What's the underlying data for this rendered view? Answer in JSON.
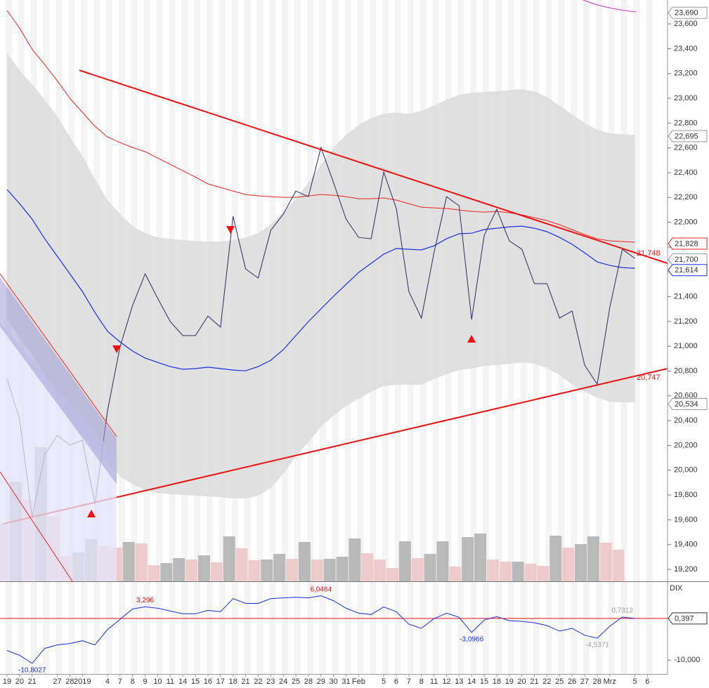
{
  "chart_data": [
    {
      "type": "line",
      "ylim": [
        19104,
        23793
      ],
      "yticks": [
        {
          "value": 19200,
          "label": "19,200"
        },
        {
          "value": 19400,
          "label": "19,400"
        },
        {
          "value": 19600,
          "label": "19,600"
        },
        {
          "value": 19800,
          "label": "19,800"
        },
        {
          "value": 20000,
          "label": "20,000"
        },
        {
          "value": 20200,
          "label": "20,200"
        },
        {
          "value": 20400,
          "label": "20,400"
        },
        {
          "value": 20600,
          "label": "20,600"
        },
        {
          "value": 20800,
          "label": "20,800"
        },
        {
          "value": 21000,
          "label": "21,000"
        },
        {
          "value": 21200,
          "label": "21,200"
        },
        {
          "value": 21400,
          "label": "21,400"
        },
        {
          "value": 21600,
          "label": "21,600"
        },
        {
          "value": 21800,
          "label": "21,800"
        },
        {
          "value": 22000,
          "label": "22,000"
        },
        {
          "value": 22200,
          "label": "22,200"
        },
        {
          "value": 22400,
          "label": "22,400"
        },
        {
          "value": 22600,
          "label": "22,600"
        },
        {
          "value": 22800,
          "label": "22,800"
        },
        {
          "value": 23000,
          "label": "23,000"
        },
        {
          "value": 23200,
          "label": "23,200"
        },
        {
          "value": 23400,
          "label": "23,400"
        },
        {
          "value": 23600,
          "label": "23,600"
        }
      ],
      "band": {
        "color": "#dcdcdc",
        "upper": [
          23368,
          23226,
          23113,
          22988,
          22858,
          22688,
          22535,
          22348,
          22179,
          22065,
          21969,
          21912,
          21878,
          21867,
          21856,
          21850,
          21844,
          21844,
          21856,
          21878,
          21912,
          21980,
          22082,
          22190,
          22320,
          22462,
          22603,
          22705,
          22785,
          22841,
          22875,
          22886,
          22875,
          22898,
          22943,
          22988,
          23028,
          23045,
          23051,
          23056,
          23068,
          23073,
          23056,
          23011,
          22943,
          22869,
          22802,
          22745,
          22717,
          22711,
          22705,
          null
        ],
        "lower": [
          21216,
          21074,
          20933,
          20763,
          20593,
          20423,
          20281,
          20168,
          20055,
          19953,
          19885,
          19840,
          19817,
          19806,
          19800,
          19794,
          19789,
          19783,
          19772,
          19772,
          19794,
          19857,
          19970,
          20112,
          20225,
          20349,
          20440,
          20519,
          20576,
          20633,
          20678,
          20689,
          20689,
          20689,
          20735,
          20774,
          20808,
          20820,
          20842,
          20848,
          20859,
          20870,
          20859,
          20825,
          20768,
          20689,
          20633,
          20587,
          20553,
          20548,
          20548,
          null
        ]
      },
      "volume": {
        "ylim": [
          0,
          200
        ],
        "values": [
          83,
          142,
          116,
          191,
          93,
          36,
          41,
          60,
          50,
          48,
          56,
          54,
          23,
          26,
          33,
          31,
          37,
          27,
          64,
          47,
          30,
          31,
          39,
          32,
          56,
          31,
          32,
          35,
          61,
          40,
          31,
          19,
          57,
          33,
          39,
          57,
          21,
          63,
          68,
          31,
          28,
          28,
          25,
          22,
          65,
          48,
          53,
          64,
          55,
          45,
          null,
          null
        ],
        "colors": [
          "#ecc6c6",
          "#b3b3b3",
          "#ecc6c6",
          "#b3b3b3",
          "#ecc6c6",
          "#ecc6c6",
          "#b3b3b3",
          "#b3b3b3",
          "#ecc6c6",
          "#ecc6c6",
          "#b3b3b3",
          "#ecc6c6",
          "#ecc6c6",
          "#b3b3b3",
          "#b3b3b3",
          "#ecc6c6",
          "#b3b3b3",
          "#ecc6c6",
          "#b3b3b3",
          "#ecc6c6",
          "#ecc6c6",
          "#b3b3b3",
          "#b3b3b3",
          "#ecc6c6",
          "#b3b3b3",
          "#ecc6c6",
          "#b3b3b3",
          "#b3b3b3",
          "#b3b3b3",
          "#ecc6c6",
          "#ecc6c6",
          "#ecc6c6",
          "#b3b3b3",
          "#ecc6c6",
          "#b3b3b3",
          "#b3b3b3",
          "#ecc6c6",
          "#b3b3b3",
          "#b3b3b3",
          "#ecc6c6",
          "#ecc6c6",
          "#b3b3b3",
          "#ecc6c6",
          "#ecc6c6",
          "#b3b3b3",
          "#ecc6c6",
          "#b3b3b3",
          "#b3b3b3",
          "#ecc6c6",
          "#ecc6c6",
          null,
          null
        ]
      },
      "series": [
        {
          "color": "#ee2222",
          "width": 1,
          "values": [
            23708,
            23566,
            23396,
            23272,
            23141,
            23000,
            22887,
            22774,
            22688,
            22643,
            22603,
            22569,
            22518,
            22467,
            22416,
            22365,
            22309,
            22281,
            22252,
            22224,
            22213,
            22207,
            22201,
            22201,
            22213,
            22224,
            22218,
            22207,
            22190,
            22190,
            22196,
            22179,
            22150,
            22122,
            22116,
            22111,
            22099,
            22088,
            22082,
            22088,
            22077,
            22060,
            22037,
            22014,
            21980,
            21941,
            21901,
            21867,
            21850,
            21845,
            21839,
            null
          ]
        },
        {
          "color": "#1a2ee0",
          "width": 1.2,
          "values": [
            22264,
            22150,
            22026,
            21867,
            21726,
            21584,
            21442,
            21272,
            21120,
            21035,
            20961,
            20904,
            20870,
            20836,
            20814,
            20820,
            20831,
            20820,
            20808,
            20802,
            20836,
            20887,
            20972,
            21086,
            21199,
            21301,
            21403,
            21499,
            21595,
            21669,
            21743,
            21788,
            21782,
            21777,
            21810,
            21867,
            21907,
            21912,
            21941,
            21952,
            21963,
            21969,
            21952,
            21924,
            21878,
            21822,
            21754,
            21680,
            21652,
            21635,
            21629,
            null
          ]
        },
        {
          "color": "#2a2a5e",
          "width": 1,
          "values": [
            20735,
            20412,
            19619,
            20123,
            20282,
            20202,
            20242,
            19727,
            20480,
            20995,
            21329,
            21584,
            21386,
            21199,
            21086,
            21086,
            21244,
            21154,
            22048,
            21624,
            21550,
            21935,
            22065,
            22252,
            22207,
            22603,
            22320,
            22026,
            21878,
            21867,
            22405,
            22111,
            21442,
            21227,
            21754,
            22207,
            22133,
            21216,
            21895,
            22105,
            21850,
            21782,
            21505,
            21505,
            21227,
            21284,
            20848,
            20695,
            21312,
            21782,
            21709,
            null
          ]
        }
      ],
      "trendlines": [
        {
          "color": "#ee1111",
          "x": [
            5.76,
            52.6
          ],
          "y": [
            23226,
            21669
          ],
          "end_label": {
            "value": 21748,
            "label": "21,748"
          }
        },
        {
          "color": "#ee1111",
          "x": [
            -0.28,
            52.6
          ],
          "y": [
            19568,
            20820
          ],
          "end_label": {
            "value": 20747,
            "label": "20,747"
          }
        }
      ],
      "price_tags": [
        {
          "value": 23690,
          "label": "23,690",
          "color": "#999999"
        },
        {
          "value": 22695,
          "label": "22,695",
          "color": "#999999"
        },
        {
          "value": 21828,
          "label": "21,828",
          "color": "#ee2222"
        },
        {
          "value": 21700,
          "label": "21,700",
          "color": "#999999"
        },
        {
          "value": 21614,
          "label": "21,614",
          "color": "#1a2ee0"
        },
        {
          "value": 20534,
          "label": "20,534",
          "color": "#999999"
        }
      ]
    },
    {
      "type": "line",
      "title": "DIX",
      "categories": [
        "19",
        "20",
        "21",
        null,
        "27",
        "28",
        "2019",
        null,
        "4",
        "7",
        "8",
        "9",
        "10",
        "11",
        "14",
        "15",
        "16",
        "17",
        "18",
        "21",
        "22",
        "23",
        "24",
        "25",
        "28",
        "29",
        "30",
        "31",
        "Feb",
        null,
        "5",
        "6",
        "7",
        "8",
        "11",
        "12",
        "13",
        "14",
        "15",
        "18",
        "19",
        "20",
        "21",
        "22",
        "25",
        "26",
        "27",
        "28",
        "Mrz",
        null,
        "5",
        "6"
      ],
      "ylim": [
        -13.45,
        9.31
      ],
      "yticks": [
        {
          "value": -10,
          "label": "-10,000"
        }
      ],
      "hline": {
        "value": 0.397,
        "label": "0,397",
        "color": "#dd1111"
      },
      "series": [
        {
          "color": "#1a2ee0",
          "values": [
            -7.59,
            -8.79,
            -10.8027,
            -7.07,
            -6.21,
            -5.86,
            -5.17,
            -6.21,
            -2.41,
            0.17,
            2.76,
            3.296,
            2.93,
            2.24,
            1.55,
            1.55,
            2.41,
            2.07,
            5.34,
            4.14,
            4.14,
            5.34,
            5.52,
            5.69,
            5.52,
            6.0464,
            4.83,
            2.93,
            1.72,
            1.38,
            3.28,
            2.07,
            -1.03,
            -2.07,
            0.34,
            1.72,
            0.69,
            -3.0966,
            0,
            0.86,
            -0.17,
            -0.34,
            -0.69,
            -1.38,
            -2.76,
            -2.07,
            -3.79,
            -4.5371,
            -1.55,
            0.7312,
            0.397,
            null
          ],
          "value_labels": [
            null,
            null,
            "-10,8027",
            null,
            null,
            null,
            null,
            null,
            null,
            null,
            null,
            "3,296",
            null,
            null,
            null,
            null,
            null,
            null,
            null,
            null,
            null,
            null,
            null,
            null,
            null,
            "6,0464",
            null,
            null,
            null,
            null,
            null,
            null,
            null,
            null,
            null,
            null,
            null,
            "-3,0966",
            null,
            null,
            null,
            null,
            null,
            null,
            null,
            null,
            null,
            "-4,5371",
            null,
            "0,7312",
            null,
            null
          ],
          "value_label_colors": [
            null,
            null,
            "#1a2ee0",
            null,
            null,
            null,
            null,
            null,
            null,
            null,
            null,
            "#dd1111",
            null,
            null,
            null,
            null,
            null,
            null,
            null,
            null,
            null,
            null,
            null,
            null,
            null,
            "#dd1111",
            null,
            null,
            null,
            null,
            null,
            null,
            null,
            null,
            null,
            null,
            null,
            "#1a2ee0",
            null,
            null,
            null,
            null,
            null,
            null,
            null,
            null,
            null,
            "#999999",
            null,
            "#999999",
            null,
            null
          ]
        }
      ]
    }
  ]
}
